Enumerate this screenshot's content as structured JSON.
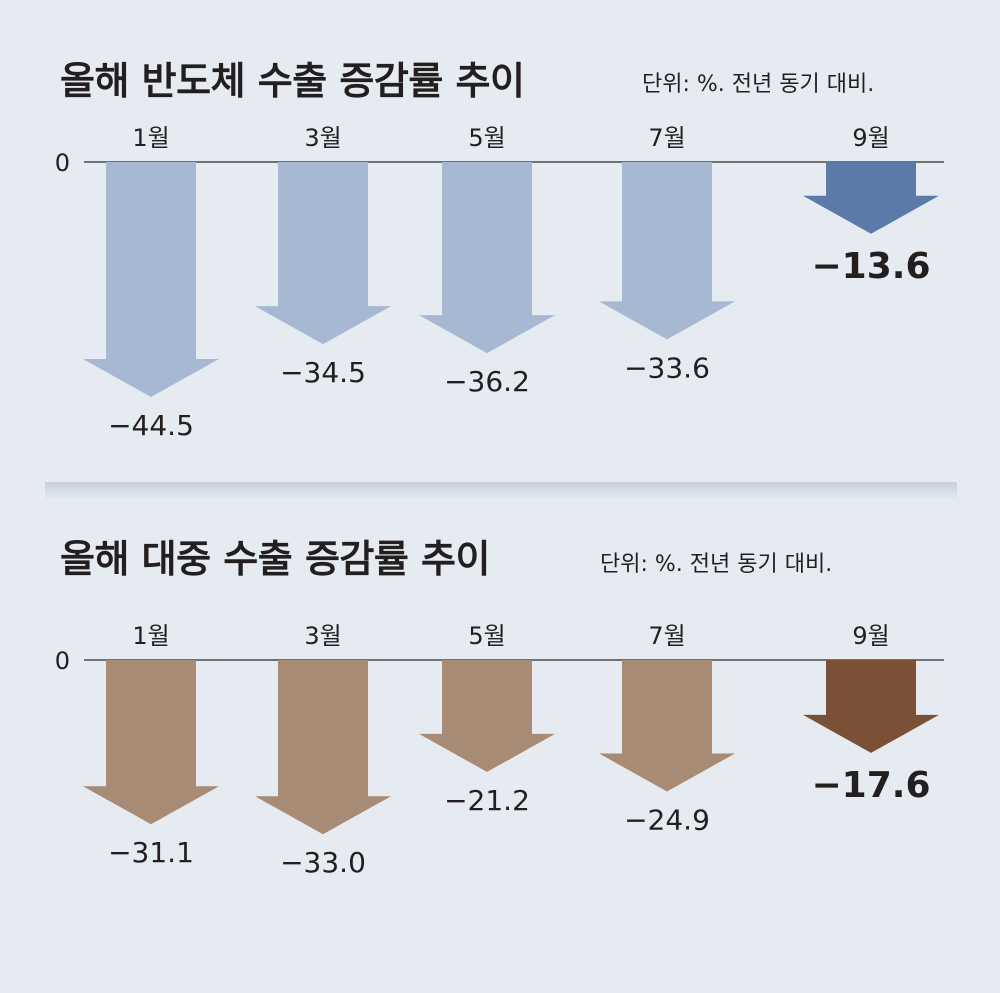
{
  "colors": {
    "background": "#e5ebf1",
    "semiconductor_arrow": "#a7b8d2",
    "semiconductor_highlight": "#5b7aa8",
    "china_arrow": "#a88b74",
    "china_highlight": "#7a5136",
    "text": "#231f20"
  },
  "chart_data": [
    {
      "type": "bar",
      "title": "올해 반도체 수출 증감률 추이",
      "subtitle": "단위: %. 전년 동기 대비.",
      "zero_label": "0",
      "categories": [
        "1월",
        "3월",
        "5월",
        "7월",
        "9월"
      ],
      "values": [
        -44.5,
        -34.5,
        -36.2,
        -33.6,
        -13.6
      ],
      "value_labels": [
        "−44.5",
        "−34.5",
        "−36.2",
        "−33.6",
        "−13.6"
      ],
      "highlight_index": 4,
      "ylim": [
        -50,
        0
      ],
      "grid": false,
      "legend": "none"
    },
    {
      "type": "bar",
      "title": "올해 대중 수출 증감률 추이",
      "subtitle": "단위: %. 전년 동기 대비.",
      "zero_label": "0",
      "categories": [
        "1월",
        "3월",
        "5월",
        "7월",
        "9월"
      ],
      "values": [
        -31.1,
        -33.0,
        -21.2,
        -24.9,
        -17.6
      ],
      "value_labels": [
        "−31.1",
        "−33.0",
        "−21.2",
        "−24.9",
        "−17.6"
      ],
      "highlight_index": 4,
      "ylim": [
        -50,
        0
      ],
      "grid": false,
      "legend": "none"
    }
  ]
}
